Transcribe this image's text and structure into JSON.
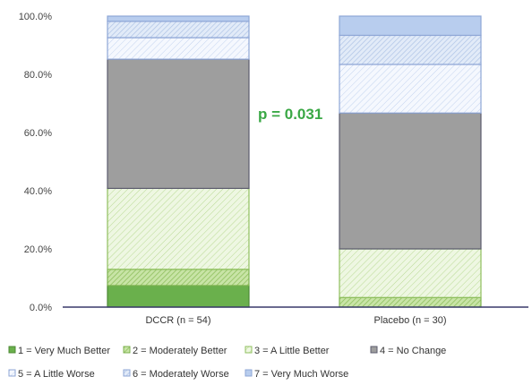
{
  "chart_data": {
    "type": "bar",
    "stacked": true,
    "categories": [
      "DCCR (n = 54)",
      "Placebo (n = 30)"
    ],
    "y_ticks": [
      "0.0%",
      "20.0%",
      "40.0%",
      "60.0%",
      "80.0%",
      "100.0%"
    ],
    "ylim": [
      0,
      100
    ],
    "grid": false,
    "legend_position": "bottom",
    "annotation": {
      "text": "p = 0.031",
      "color": "#3aa845"
    },
    "series": [
      {
        "name": "1 = Very Much Better",
        "values": [
          7.4,
          0.0
        ],
        "fill": "#6ab04c",
        "stroke": "#4d8a35",
        "pattern": "solid"
      },
      {
        "name": "2 = Moderately Better",
        "values": [
          5.6,
          3.3
        ],
        "fill": "#b3d88c",
        "stroke": "#7db24f",
        "pattern": "dense"
      },
      {
        "name": "3 = A Little Better",
        "values": [
          27.8,
          16.7
        ],
        "fill": "#dcefc3",
        "stroke": "#8fbf5e",
        "pattern": "light"
      },
      {
        "name": "4 = No Change",
        "values": [
          44.4,
          46.7
        ],
        "fill": "#9e9e9e",
        "stroke": "#5c5c6e",
        "pattern": "solid"
      },
      {
        "name": "5 = A Little Worse",
        "values": [
          7.4,
          16.7
        ],
        "fill": "#e6eefb",
        "stroke": "#8ea6d6",
        "pattern": "light"
      },
      {
        "name": "6 = Moderately Worse",
        "values": [
          5.6,
          10.0
        ],
        "fill": "#d6e2f4",
        "stroke": "#8ea6d6",
        "pattern": "dense"
      },
      {
        "name": "7 = Very Much Worse",
        "values": [
          1.8,
          6.6
        ],
        "fill": "#b8cdee",
        "stroke": "#8ea6d6",
        "pattern": "solid"
      }
    ]
  }
}
